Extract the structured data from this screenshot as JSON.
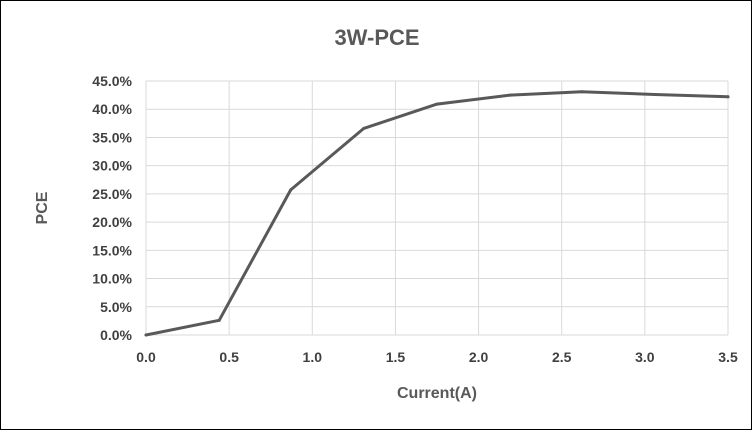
{
  "chart_data": {
    "type": "line",
    "title": "3W-PCE",
    "xlabel": "Current(A)",
    "ylabel": "PCE",
    "xlim": [
      0,
      3.5
    ],
    "ylim": [
      0,
      0.45
    ],
    "x_ticks": [
      "0.0",
      "0.5",
      "1.0",
      "1.5",
      "2.0",
      "2.5",
      "3.0",
      "3.5"
    ],
    "y_ticks": [
      "0.0%",
      "5.0%",
      "10.0%",
      "15.0%",
      "20.0%",
      "25.0%",
      "30.0%",
      "35.0%",
      "40.0%",
      "45.0%"
    ],
    "grid": true,
    "series": [
      {
        "color": "#595959",
        "x": [
          0.0,
          0.44,
          0.87,
          1.31,
          1.75,
          2.19,
          2.62,
          3.06,
          3.5
        ],
        "y": [
          0.0,
          0.026,
          0.257,
          0.366,
          0.409,
          0.425,
          0.431,
          0.426,
          0.422
        ]
      }
    ]
  }
}
